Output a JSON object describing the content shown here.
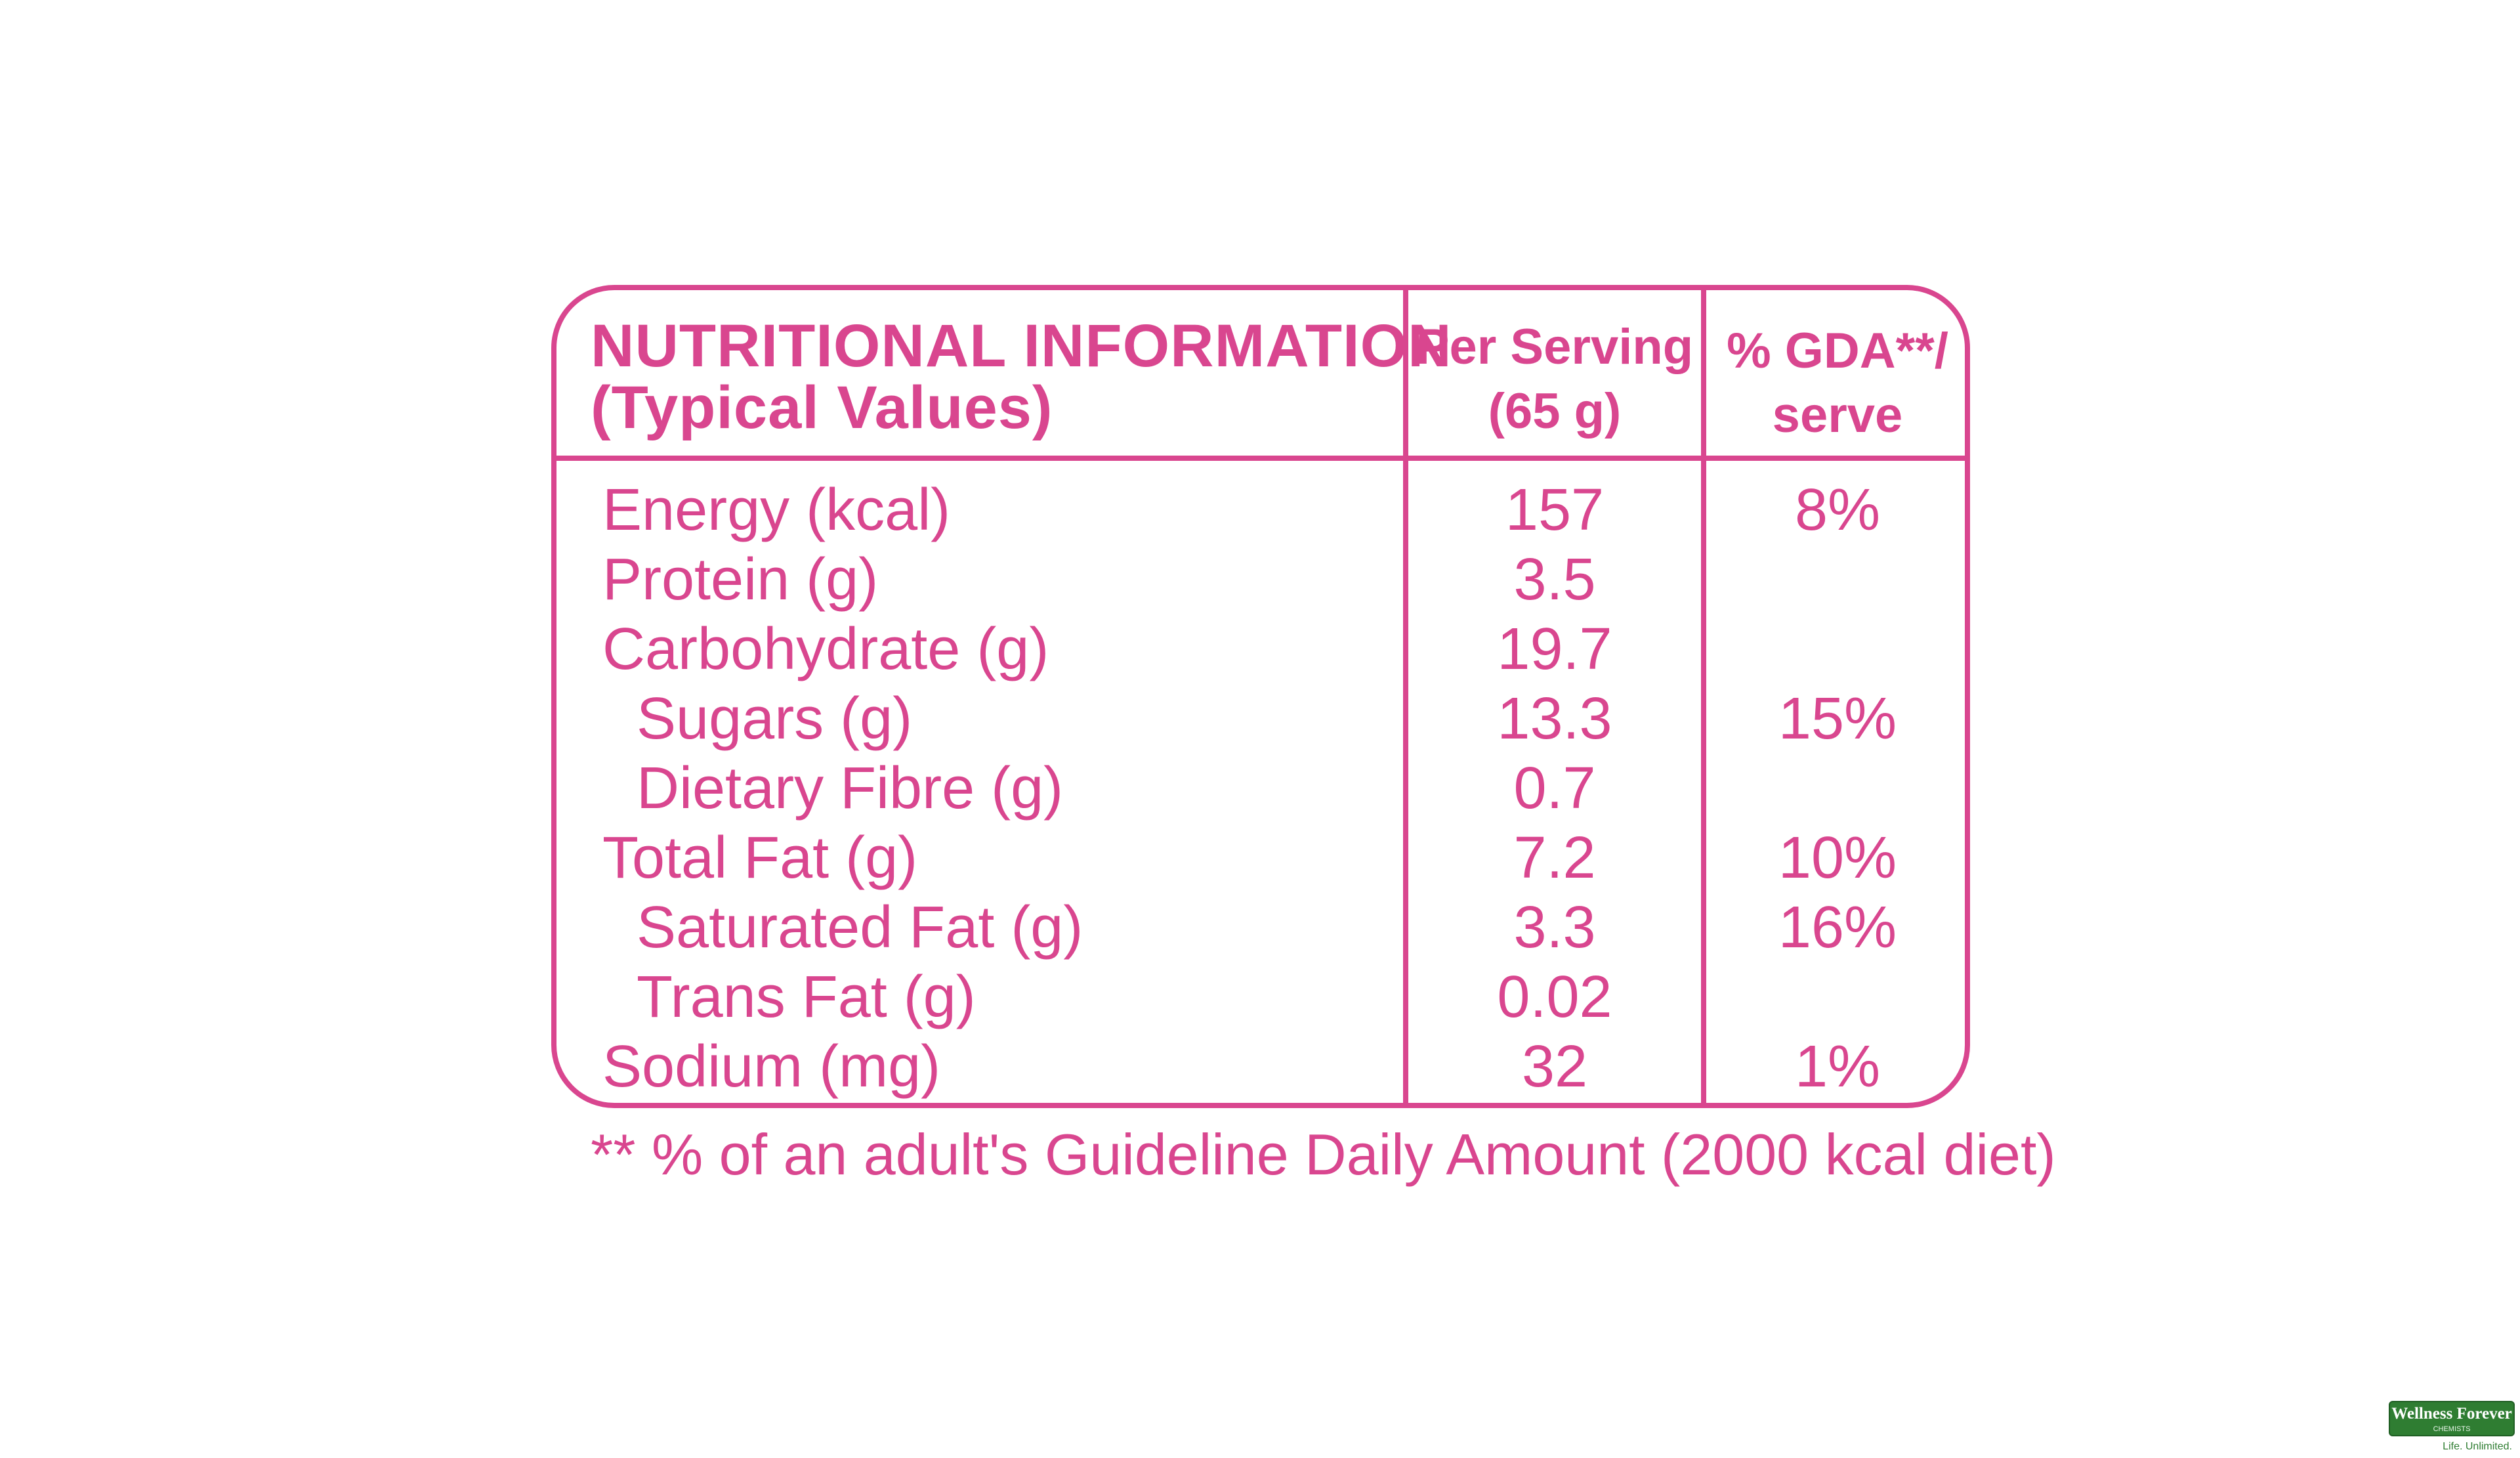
{
  "colors": {
    "accent": "#d9468f",
    "background": "#ffffff",
    "brand_green": "#2f7d32"
  },
  "table": {
    "header": {
      "title_line1": "NUTRITIONAL INFORMATION",
      "title_line2": "(Typical Values)",
      "serving_line1": "Per Serving",
      "serving_line2": "(65 g)",
      "gda_line1": "% GDA**/",
      "gda_line2": "serve"
    },
    "rows": [
      {
        "name": "Energy (kcal)",
        "per_serving": "157",
        "gda": "8%",
        "indent": false
      },
      {
        "name": "Protein (g)",
        "per_serving": "3.5",
        "gda": "",
        "indent": false
      },
      {
        "name": "Carbohydrate (g)",
        "per_serving": "19.7",
        "gda": "",
        "indent": false
      },
      {
        "name": "Sugars (g)",
        "per_serving": "13.3",
        "gda": "15%",
        "indent": true
      },
      {
        "name": "Dietary Fibre (g)",
        "per_serving": "0.7",
        "gda": "",
        "indent": true
      },
      {
        "name": "Total Fat (g)",
        "per_serving": "7.2",
        "gda": "10%",
        "indent": false
      },
      {
        "name": "Saturated Fat (g)",
        "per_serving": "3.3",
        "gda": "16%",
        "indent": true
      },
      {
        "name": "Trans Fat (g)",
        "per_serving": "0.02",
        "gda": "",
        "indent": true
      },
      {
        "name": "Sodium (mg)",
        "per_serving": "32",
        "gda": "1%",
        "indent": false
      }
    ]
  },
  "footnote": "** % of an adult's Guideline Daily Amount (2000 kcal diet)",
  "brand": {
    "name": "Wellness Forever",
    "sub": "CHEMISTS",
    "tagline": "Life. Unlimited."
  }
}
